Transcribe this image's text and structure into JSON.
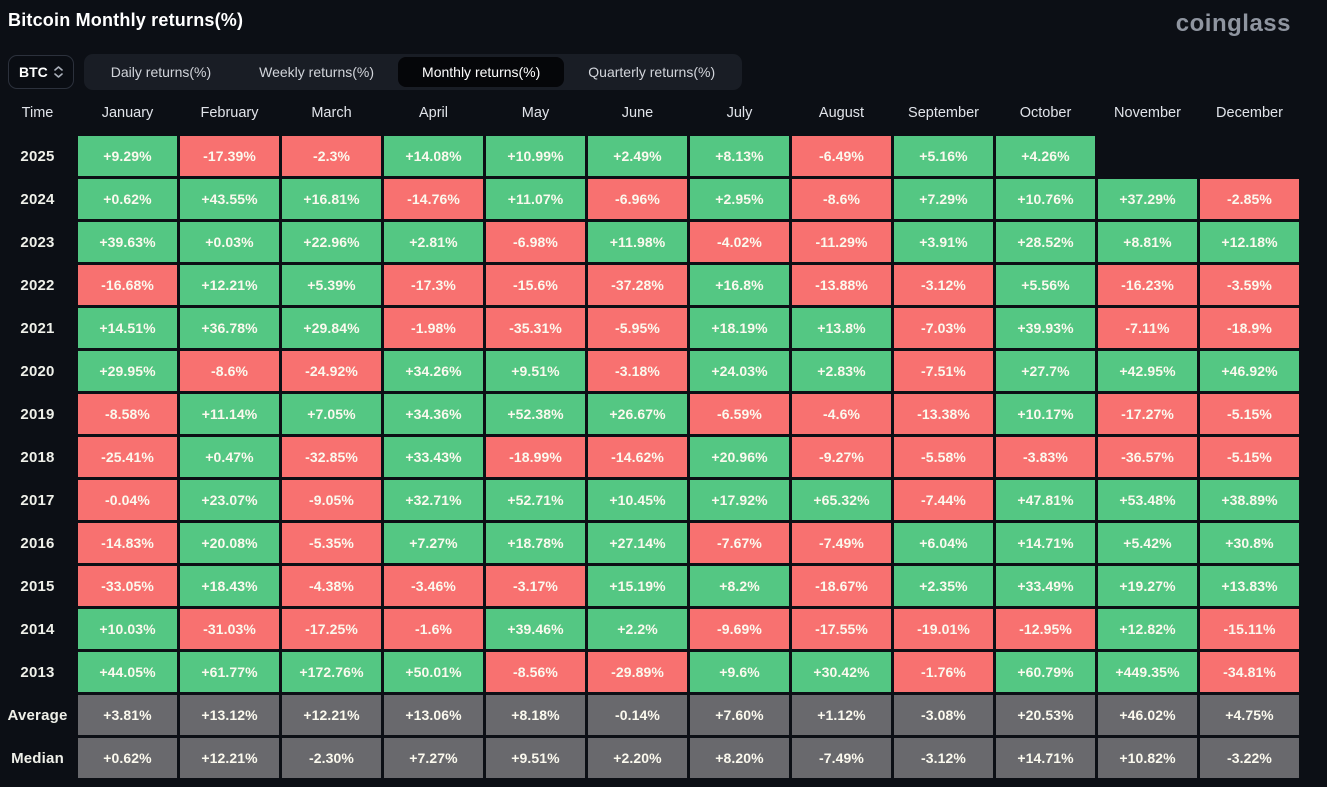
{
  "header": {
    "title": "Bitcoin Monthly returns(%)",
    "logo": "coinglass"
  },
  "controls": {
    "symbol": "BTC",
    "tabs": [
      {
        "label": "Daily returns(%)",
        "active": false
      },
      {
        "label": "Weekly returns(%)",
        "active": false
      },
      {
        "label": "Monthly returns(%)",
        "active": true
      },
      {
        "label": "Quarterly returns(%)",
        "active": false
      }
    ]
  },
  "colors": {
    "positive": "#54c783",
    "negative": "#f87170",
    "summary": "#69696d"
  },
  "table": {
    "columns": [
      "Time",
      "January",
      "February",
      "March",
      "April",
      "May",
      "June",
      "July",
      "August",
      "September",
      "October",
      "November",
      "December"
    ],
    "rows": [
      {
        "label": "2025",
        "type": "year",
        "cells": [
          "+9.29%",
          "-17.39%",
          "-2.3%",
          "+14.08%",
          "+10.99%",
          "+2.49%",
          "+8.13%",
          "-6.49%",
          "+5.16%",
          "+4.26%",
          null,
          null
        ]
      },
      {
        "label": "2024",
        "type": "year",
        "cells": [
          "+0.62%",
          "+43.55%",
          "+16.81%",
          "-14.76%",
          "+11.07%",
          "-6.96%",
          "+2.95%",
          "-8.6%",
          "+7.29%",
          "+10.76%",
          "+37.29%",
          "-2.85%"
        ]
      },
      {
        "label": "2023",
        "type": "year",
        "cells": [
          "+39.63%",
          "+0.03%",
          "+22.96%",
          "+2.81%",
          "-6.98%",
          "+11.98%",
          "-4.02%",
          "-11.29%",
          "+3.91%",
          "+28.52%",
          "+8.81%",
          "+12.18%"
        ]
      },
      {
        "label": "2022",
        "type": "year",
        "cells": [
          "-16.68%",
          "+12.21%",
          "+5.39%",
          "-17.3%",
          "-15.6%",
          "-37.28%",
          "+16.8%",
          "-13.88%",
          "-3.12%",
          "+5.56%",
          "-16.23%",
          "-3.59%"
        ]
      },
      {
        "label": "2021",
        "type": "year",
        "cells": [
          "+14.51%",
          "+36.78%",
          "+29.84%",
          "-1.98%",
          "-35.31%",
          "-5.95%",
          "+18.19%",
          "+13.8%",
          "-7.03%",
          "+39.93%",
          "-7.11%",
          "-18.9%"
        ]
      },
      {
        "label": "2020",
        "type": "year",
        "cells": [
          "+29.95%",
          "-8.6%",
          "-24.92%",
          "+34.26%",
          "+9.51%",
          "-3.18%",
          "+24.03%",
          "+2.83%",
          "-7.51%",
          "+27.7%",
          "+42.95%",
          "+46.92%"
        ]
      },
      {
        "label": "2019",
        "type": "year",
        "cells": [
          "-8.58%",
          "+11.14%",
          "+7.05%",
          "+34.36%",
          "+52.38%",
          "+26.67%",
          "-6.59%",
          "-4.6%",
          "-13.38%",
          "+10.17%",
          "-17.27%",
          "-5.15%"
        ]
      },
      {
        "label": "2018",
        "type": "year",
        "cells": [
          "-25.41%",
          "+0.47%",
          "-32.85%",
          "+33.43%",
          "-18.99%",
          "-14.62%",
          "+20.96%",
          "-9.27%",
          "-5.58%",
          "-3.83%",
          "-36.57%",
          "-5.15%"
        ]
      },
      {
        "label": "2017",
        "type": "year",
        "cells": [
          "-0.04%",
          "+23.07%",
          "-9.05%",
          "+32.71%",
          "+52.71%",
          "+10.45%",
          "+17.92%",
          "+65.32%",
          "-7.44%",
          "+47.81%",
          "+53.48%",
          "+38.89%"
        ]
      },
      {
        "label": "2016",
        "type": "year",
        "cells": [
          "-14.83%",
          "+20.08%",
          "-5.35%",
          "+7.27%",
          "+18.78%",
          "+27.14%",
          "-7.67%",
          "-7.49%",
          "+6.04%",
          "+14.71%",
          "+5.42%",
          "+30.8%"
        ]
      },
      {
        "label": "2015",
        "type": "year",
        "cells": [
          "-33.05%",
          "+18.43%",
          "-4.38%",
          "-3.46%",
          "-3.17%",
          "+15.19%",
          "+8.2%",
          "-18.67%",
          "+2.35%",
          "+33.49%",
          "+19.27%",
          "+13.83%"
        ]
      },
      {
        "label": "2014",
        "type": "year",
        "cells": [
          "+10.03%",
          "-31.03%",
          "-17.25%",
          "-1.6%",
          "+39.46%",
          "+2.2%",
          "-9.69%",
          "-17.55%",
          "-19.01%",
          "-12.95%",
          "+12.82%",
          "-15.11%"
        ]
      },
      {
        "label": "2013",
        "type": "year",
        "cells": [
          "+44.05%",
          "+61.77%",
          "+172.76%",
          "+50.01%",
          "-8.56%",
          "-29.89%",
          "+9.6%",
          "+30.42%",
          "-1.76%",
          "+60.79%",
          "+449.35%",
          "-34.81%"
        ]
      },
      {
        "label": "Average",
        "type": "summary",
        "cells": [
          "+3.81%",
          "+13.12%",
          "+12.21%",
          "+13.06%",
          "+8.18%",
          "-0.14%",
          "+7.60%",
          "+1.12%",
          "-3.08%",
          "+20.53%",
          "+46.02%",
          "+4.75%"
        ]
      },
      {
        "label": "Median",
        "type": "summary",
        "cells": [
          "+0.62%",
          "+12.21%",
          "-2.30%",
          "+7.27%",
          "+9.51%",
          "+2.20%",
          "+8.20%",
          "-7.49%",
          "-3.12%",
          "+14.71%",
          "+10.82%",
          "-3.22%"
        ]
      }
    ]
  }
}
